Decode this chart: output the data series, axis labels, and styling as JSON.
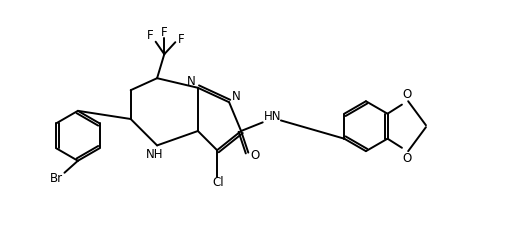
{
  "background_color": "#ffffff",
  "line_color": "#000000",
  "line_width": 1.4,
  "fig_width": 5.11,
  "fig_height": 2.38,
  "dpi": 100,
  "xlim": [
    0,
    10.5
  ],
  "ylim": [
    0,
    4.9
  ]
}
